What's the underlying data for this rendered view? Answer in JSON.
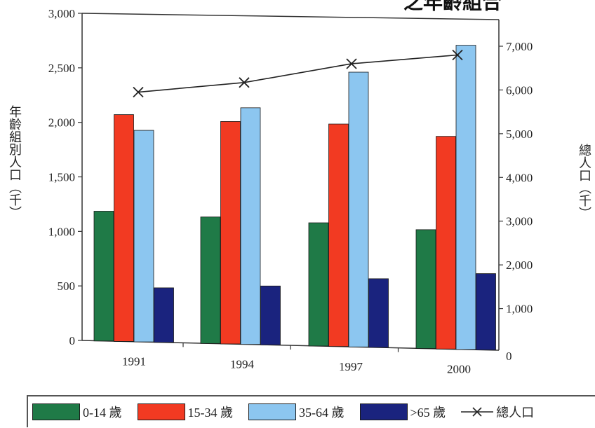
{
  "chart_data": {
    "type": "bar",
    "categories": [
      "1991",
      "1994",
      "1997",
      "2000"
    ],
    "series": [
      {
        "name": "0-14 歲",
        "values": [
          1190,
          1160,
          1130,
          1090
        ],
        "color": "#1f7a47",
        "axis": "left"
      },
      {
        "name": "15-34 歲",
        "values": [
          2080,
          2040,
          2040,
          1950
        ],
        "color": "#f23a22",
        "axis": "left"
      },
      {
        "name": "35-64 歲",
        "values": [
          1940,
          2170,
          2520,
          2790
        ],
        "color": "#8cc6f0",
        "axis": "left"
      },
      {
        "name": ">65 歲",
        "values": [
          500,
          540,
          630,
          700
        ],
        "color": "#1a237e",
        "axis": "left"
      }
    ],
    "line_series": {
      "name": "總人口",
      "values": [
        5950,
        6170,
        6600,
        6800
      ],
      "axis": "right",
      "type": "line",
      "marker": "x"
    },
    "ylabel": "年齡組別人口（千）",
    "y2label": "總人口（千）",
    "ylim": [
      0,
      3000
    ],
    "y2lim": [
      0,
      7500
    ],
    "y_ticks": [
      "0",
      "500",
      "1,000",
      "1,500",
      "2,000",
      "2,500",
      "3,000"
    ],
    "y2_ticks": [
      "0",
      "1,000",
      "2,000",
      "3,000",
      "4,000",
      "5,000",
      "6,000",
      "7,000"
    ],
    "grid": false,
    "legend_position": "bottom",
    "title_fragment": "之年齡組合"
  }
}
